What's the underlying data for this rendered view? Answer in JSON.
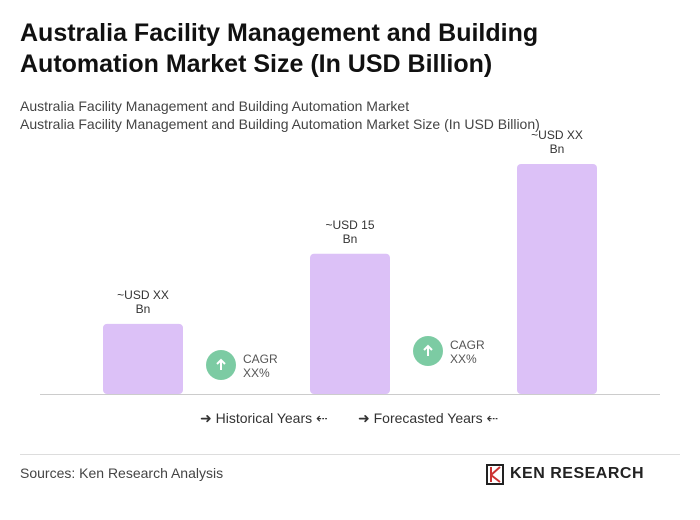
{
  "chart_data": {
    "type": "bar",
    "title": "Australia Facility Management and Building Automation Market Size (In USD Billion)",
    "subtitles": [
      "Australia Facility Management and Building Automation Market",
      "Australia Facility Management and Building Automation Market Size (In USD Billion)"
    ],
    "categories": [
      null,
      null,
      null
    ],
    "values": [
      7.5,
      15,
      24.6
    ],
    "value_labels": [
      "~USD XX Bn",
      "~USD 15 Bn",
      "~USD XX Bn"
    ],
    "color": "#dcc1f7",
    "annotations": [
      "CAGR XX%",
      "CAGR XX%"
    ],
    "annotation_color": "#7ccba3",
    "legend": [
      "Historical Years",
      "Forecasted Years"
    ],
    "source": "Sources: Ken Research Analysis",
    "logo": "KEN RESEARCH"
  }
}
